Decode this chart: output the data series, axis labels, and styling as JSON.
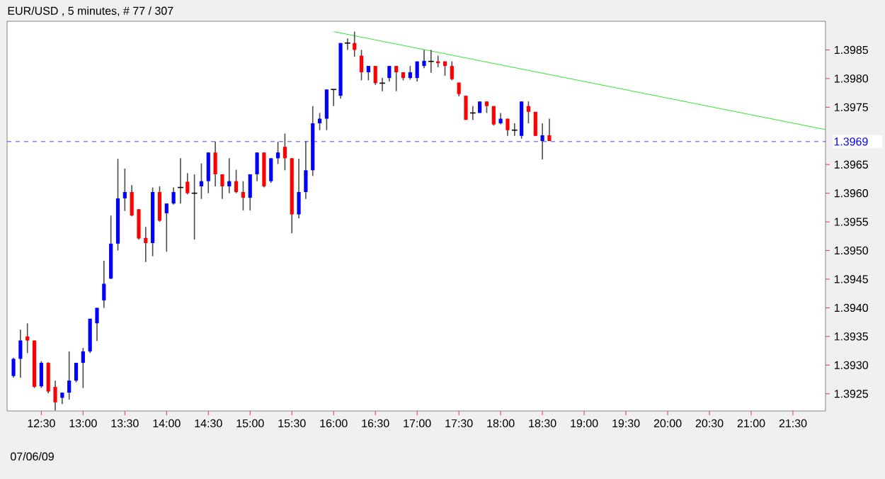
{
  "chart_data": {
    "type": "candlestick",
    "title": "EUR/USD , 5 minutes, # 77 / 307",
    "annotations": [
      "07/06/09"
    ],
    "x": [
      12.1667,
      12.25,
      12.3333,
      12.4167,
      12.5,
      12.5833,
      12.6667,
      12.75,
      12.8333,
      12.9167,
      13.0,
      13.0833,
      13.1667,
      13.25,
      13.3333,
      13.4167,
      13.5,
      13.5833,
      13.6667,
      13.75,
      13.8333,
      13.9167,
      14.0,
      14.0833,
      14.1667,
      14.25,
      14.3333,
      14.4167,
      14.5,
      14.5833,
      14.6667,
      14.75,
      14.8333,
      14.9167,
      15.0,
      15.0833,
      15.1667,
      15.25,
      15.3333,
      15.4167,
      15.5,
      15.5833,
      15.6667,
      15.75,
      15.8333,
      15.9167,
      16.0,
      16.0833,
      16.1667,
      16.25,
      16.3333,
      16.4167,
      16.5,
      16.5833,
      16.6667,
      16.75,
      16.8333,
      16.9167,
      17.0,
      17.0833,
      17.1667,
      17.25,
      17.3333,
      17.4167,
      17.5,
      17.5833,
      17.6667,
      17.75,
      17.8333,
      17.9167,
      18.0,
      18.0833,
      18.1667,
      18.25,
      18.3333,
      18.4167,
      18.5,
      18.5833
    ],
    "ohlc": [
      [
        1.39281,
        1.39313,
        1.39278,
        1.39311
      ],
      [
        1.39311,
        1.39362,
        1.39278,
        1.39343
      ],
      [
        1.3935,
        1.39373,
        1.39321,
        1.39343
      ],
      [
        1.39343,
        1.39343,
        1.3926,
        1.39262
      ],
      [
        1.39263,
        1.39307,
        1.3926,
        1.39304
      ],
      [
        1.39304,
        1.39305,
        1.39251,
        1.39254
      ],
      [
        1.39262,
        1.39273,
        1.39221,
        1.39235
      ],
      [
        1.39243,
        1.39252,
        1.39232,
        1.39252
      ],
      [
        1.39252,
        1.39324,
        1.3924,
        1.39273
      ],
      [
        1.39273,
        1.39304,
        1.3927,
        1.39304
      ],
      [
        1.39304,
        1.3933,
        1.3926,
        1.39324
      ],
      [
        1.39324,
        1.39381,
        1.39321,
        1.39381
      ],
      [
        1.39373,
        1.394,
        1.39342,
        1.394
      ],
      [
        1.39413,
        1.39482,
        1.394,
        1.39442
      ],
      [
        1.39451,
        1.39561,
        1.3945,
        1.39512
      ],
      [
        1.39512,
        1.3966,
        1.395,
        1.39591
      ],
      [
        1.39591,
        1.39643,
        1.39569,
        1.39602
      ],
      [
        1.39602,
        1.39614,
        1.3956,
        1.39561
      ],
      [
        1.39572,
        1.39572,
        1.39519,
        1.39521
      ],
      [
        1.39522,
        1.39541,
        1.3948,
        1.39513
      ],
      [
        1.39513,
        1.3961,
        1.3949,
        1.39602
      ],
      [
        1.39602,
        1.39612,
        1.3955,
        1.39552
      ],
      [
        1.39565,
        1.39582,
        1.39498,
        1.39582
      ],
      [
        1.39582,
        1.3961,
        1.3958,
        1.39602
      ],
      [
        1.3961,
        1.39661,
        1.39582,
        1.3961
      ],
      [
        1.3962,
        1.39635,
        1.39598,
        1.396
      ],
      [
        1.396,
        1.39633,
        1.39519,
        1.396
      ],
      [
        1.39612,
        1.39652,
        1.3959,
        1.39621
      ],
      [
        1.39621,
        1.39671,
        1.396,
        1.39671
      ],
      [
        1.39671,
        1.3969,
        1.39612,
        1.39633
      ],
      [
        1.39633,
        1.39633,
        1.3959,
        1.39612
      ],
      [
        1.39612,
        1.39661,
        1.396,
        1.39621
      ],
      [
        1.39621,
        1.39641,
        1.396,
        1.39602
      ],
      [
        1.39602,
        1.39621,
        1.3957,
        1.39592
      ],
      [
        1.39592,
        1.39633,
        1.3957,
        1.39633
      ],
      [
        1.39633,
        1.39671,
        1.39621,
        1.39671
      ],
      [
        1.39671,
        1.39671,
        1.3961,
        1.39612
      ],
      [
        1.39621,
        1.39661,
        1.39618,
        1.39661
      ],
      [
        1.39661,
        1.3969,
        1.39651,
        1.39671
      ],
      [
        1.39681,
        1.39704,
        1.3964,
        1.39661
      ],
      [
        1.39661,
        1.39661,
        1.3953,
        1.39563
      ],
      [
        1.39563,
        1.3966,
        1.39556,
        1.39602
      ],
      [
        1.39602,
        1.39691,
        1.3959,
        1.3964
      ],
      [
        1.3964,
        1.39752,
        1.3963,
        1.39722
      ],
      [
        1.39722,
        1.3974,
        1.3971,
        1.3973
      ],
      [
        1.3973,
        1.39781,
        1.3971,
        1.39781
      ],
      [
        1.39781,
        1.39781,
        1.39752,
        1.39781
      ],
      [
        1.3977,
        1.39862,
        1.39765,
        1.39862
      ],
      [
        1.39862,
        1.3987,
        1.3985,
        1.39862
      ],
      [
        1.39862,
        1.39882,
        1.39838,
        1.3985
      ],
      [
        1.3984,
        1.3985,
        1.39797,
        1.39811
      ],
      [
        1.39811,
        1.39822,
        1.39797,
        1.39822
      ],
      [
        1.39822,
        1.39822,
        1.39789,
        1.39792
      ],
      [
        1.39792,
        1.39801,
        1.39778,
        1.39792
      ],
      [
        1.39801,
        1.39822,
        1.39795,
        1.39822
      ],
      [
        1.39822,
        1.39822,
        1.39778,
        1.39811
      ],
      [
        1.39811,
        1.39811,
        1.39797,
        1.39801
      ],
      [
        1.39801,
        1.39822,
        1.39798,
        1.39811
      ],
      [
        1.39801,
        1.3983,
        1.39795,
        1.3983
      ],
      [
        1.39822,
        1.3985,
        1.39818,
        1.39831
      ],
      [
        1.3983,
        1.3985,
        1.3981,
        1.3983
      ],
      [
        1.3983,
        1.3984,
        1.3982,
        1.39827
      ],
      [
        1.3983,
        1.3983,
        1.39805,
        1.39822
      ],
      [
        1.39822,
        1.3983,
        1.39797,
        1.39799
      ],
      [
        1.39793,
        1.39793,
        1.39769,
        1.39773
      ],
      [
        1.3977,
        1.3977,
        1.39728,
        1.39728
      ],
      [
        1.3974,
        1.39752,
        1.39728,
        1.3974
      ],
      [
        1.3974,
        1.3976,
        1.3974,
        1.3976
      ],
      [
        1.3976,
        1.3976,
        1.3974,
        1.39752
      ],
      [
        1.39752,
        1.39752,
        1.39718,
        1.3972
      ],
      [
        1.39722,
        1.3974,
        1.3972,
        1.3973
      ],
      [
        1.3973,
        1.3973,
        1.397,
        1.3971
      ],
      [
        1.3971,
        1.39722,
        1.397,
        1.3971
      ],
      [
        1.397,
        1.3976,
        1.39695,
        1.3976
      ],
      [
        1.39752,
        1.3976,
        1.39722,
        1.39742
      ],
      [
        1.39742,
        1.39742,
        1.397,
        1.397
      ],
      [
        1.39691,
        1.39722,
        1.39659,
        1.39701
      ],
      [
        1.39701,
        1.3973,
        1.39691,
        1.39691
      ]
    ],
    "series": [
      {
        "type": "line",
        "color": "#00dd00",
        "x": [
          16.0,
          21.89
        ],
        "values": [
          1.39882,
          1.39711
        ]
      }
    ],
    "ref_lines": [
      {
        "axis": "y",
        "value": 1.3969,
        "label": "1.3969",
        "color": "#0000ff",
        "line_style": "dashed"
      }
    ],
    "xlim": [
      12.09,
      21.89
    ],
    "ylim": [
      1.3922,
      1.399
    ],
    "xticks": [
      {
        "value": 12.5,
        "label": "12:30"
      },
      {
        "value": 13.0,
        "label": "13:00"
      },
      {
        "value": 13.5,
        "label": "13:30"
      },
      {
        "value": 14.0,
        "label": "14:00"
      },
      {
        "value": 14.5,
        "label": "14:30"
      },
      {
        "value": 15.0,
        "label": "15:00"
      },
      {
        "value": 15.5,
        "label": "15:30"
      },
      {
        "value": 16.0,
        "label": "16:00"
      },
      {
        "value": 16.5,
        "label": "16:30"
      },
      {
        "value": 17.0,
        "label": "17:00"
      },
      {
        "value": 17.5,
        "label": "17:30"
      },
      {
        "value": 18.0,
        "label": "18:00"
      },
      {
        "value": 18.5,
        "label": "18:30"
      },
      {
        "value": 19.0,
        "label": "19:00"
      },
      {
        "value": 19.5,
        "label": "19:30"
      },
      {
        "value": 20.0,
        "label": "20:00"
      },
      {
        "value": 20.5,
        "label": "20:30"
      },
      {
        "value": 21.0,
        "label": "21:00"
      },
      {
        "value": 21.5,
        "label": "21:30"
      }
    ],
    "yticks": [
      1.3925,
      {
        "value": 1.393,
        "label": "1.3930"
      },
      1.3935,
      {
        "value": 1.394,
        "label": "1.3940"
      },
      1.3945,
      {
        "value": 1.395,
        "label": "1.3950"
      },
      1.3955,
      {
        "value": 1.396,
        "label": "1.3960"
      },
      1.3965,
      1.3975,
      {
        "value": 1.398,
        "label": "1.3980"
      },
      1.3985
    ]
  }
}
